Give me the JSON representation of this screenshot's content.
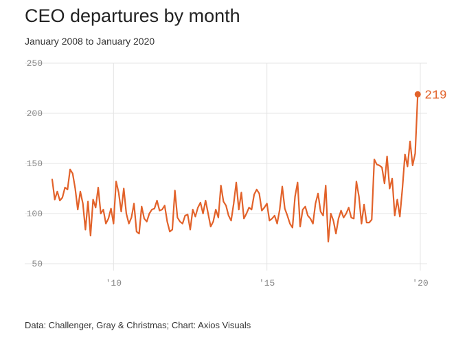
{
  "title": "CEO departures by month",
  "subtitle": "January 2008 to January 2020",
  "source": "Data: Challenger, Gray & Christmas; Chart: Axios Visuals",
  "colors": {
    "line": "#e2622a",
    "grid": "#e4e4e4",
    "tick": "#888888"
  },
  "chart_data": {
    "type": "line",
    "title": "CEO departures by month",
    "subtitle": "January 2008 to January 2020",
    "xlabel": "",
    "ylabel": "",
    "x_start": "2008-01",
    "x_end": "2020-01",
    "x_ticks": [
      {
        "value": 2010,
        "label": "'10"
      },
      {
        "value": 2015,
        "label": "'15"
      },
      {
        "value": 2020,
        "label": "'20"
      }
    ],
    "y_ticks": [
      50,
      100,
      150,
      200,
      250
    ],
    "ylim": [
      50,
      250
    ],
    "grid": true,
    "legend": "none",
    "end_label": "219",
    "values": [
      134,
      114,
      122,
      113,
      116,
      126,
      124,
      144,
      140,
      125,
      104,
      122,
      110,
      84,
      112,
      78,
      114,
      106,
      126,
      100,
      104,
      90,
      95,
      105,
      90,
      132,
      121,
      102,
      125,
      100,
      90,
      96,
      110,
      82,
      80,
      107,
      95,
      92,
      100,
      104,
      105,
      113,
      103,
      104,
      108,
      92,
      82,
      84,
      123,
      96,
      92,
      90,
      98,
      99,
      84,
      104,
      97,
      106,
      111,
      100,
      113,
      100,
      87,
      92,
      104,
      96,
      128,
      112,
      108,
      98,
      93,
      110,
      131,
      104,
      121,
      95,
      100,
      106,
      104,
      119,
      124,
      120,
      103,
      106,
      110,
      93,
      95,
      98,
      90,
      104,
      127,
      105,
      98,
      90,
      86,
      117,
      131,
      87,
      104,
      107,
      98,
      95,
      90,
      110,
      120,
      102,
      98,
      128,
      72,
      100,
      93,
      80,
      95,
      103,
      96,
      100,
      106,
      96,
      95,
      132,
      117,
      90,
      109,
      91,
      91,
      94,
      154,
      149,
      148,
      146,
      130,
      157,
      125,
      135,
      98,
      114,
      97,
      125,
      159,
      147,
      172,
      148,
      160,
      219
    ]
  }
}
